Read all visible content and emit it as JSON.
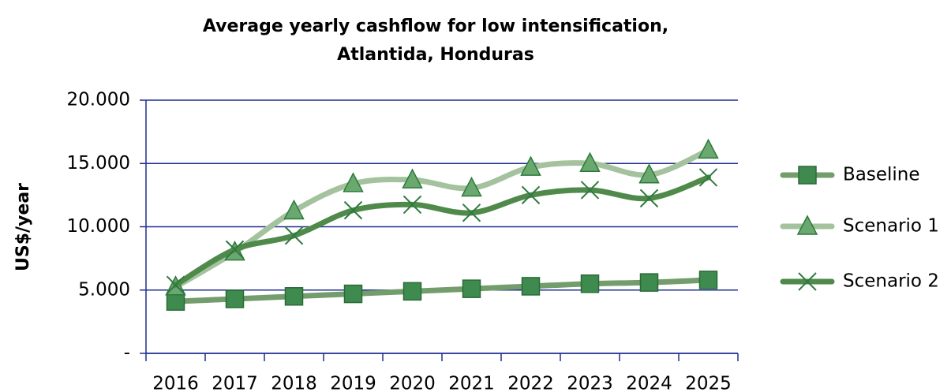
{
  "chart_data": {
    "type": "line",
    "title": [
      "Average yearly cashflow for low intensification,",
      "Atlantida, Honduras"
    ],
    "y_label": "US$/year",
    "categories": [
      "2016",
      "2017",
      "2018",
      "2019",
      "2020",
      "2021",
      "2022",
      "2023",
      "2024",
      "2025"
    ],
    "series": [
      {
        "name": "Baseline",
        "color": "#739d6c",
        "marker": "square",
        "marker_color": "#3f8a4f",
        "values": [
          4100,
          4300,
          4500,
          4700,
          4900,
          5100,
          5300,
          5500,
          5600,
          5800
        ]
      },
      {
        "name": "Scenario 1",
        "color": "#a3c29d",
        "marker": "triangle",
        "marker_color": "#6aa870",
        "values": [
          5250,
          8000,
          11250,
          13400,
          13700,
          13050,
          14700,
          15000,
          14100,
          16050
        ]
      },
      {
        "name": "Scenario 2",
        "color": "#4f8a4b",
        "marker": "x",
        "marker_color": "#2f7a3f",
        "values": [
          5400,
          8200,
          9300,
          11300,
          11750,
          11100,
          12500,
          12900,
          12250,
          13900
        ]
      }
    ],
    "ylim": [
      0,
      20000
    ],
    "yticks": [
      {
        "value": 0,
        "label": "-"
      },
      {
        "value": 5000,
        "label": "5.000"
      },
      {
        "value": 10000,
        "label": "10.000"
      },
      {
        "value": 15000,
        "label": "15.000"
      },
      {
        "value": 20000,
        "label": "20.000"
      }
    ],
    "grid": true,
    "smooth": true,
    "legend": "right"
  }
}
